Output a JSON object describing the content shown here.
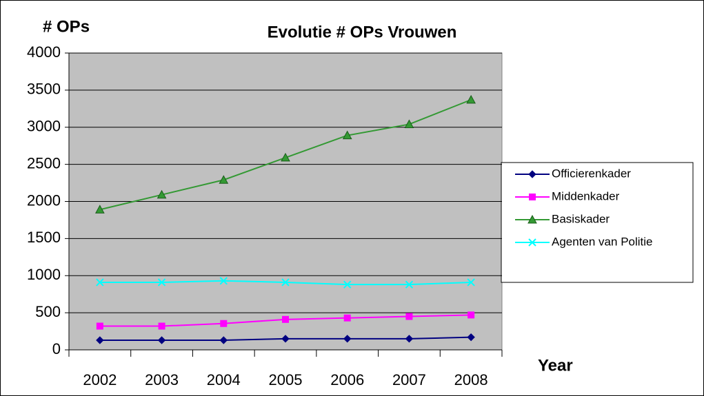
{
  "chart_data": {
    "type": "line",
    "title": "Evolutie # OPs Vrouwen",
    "y_label": "# OPs",
    "x_label": "Year",
    "categories": [
      "2002",
      "2003",
      "2004",
      "2005",
      "2006",
      "2007",
      "2008"
    ],
    "series": [
      {
        "name": "Officierenkader",
        "color": "#000080",
        "marker": "diamond",
        "values": [
          130,
          130,
          130,
          150,
          150,
          150,
          170
        ]
      },
      {
        "name": "Middenkader",
        "color": "#ff00ff",
        "marker": "square",
        "values": [
          320,
          320,
          355,
          410,
          430,
          450,
          470
        ]
      },
      {
        "name": "Basiskader",
        "color": "#339933",
        "marker": "triangle",
        "values": [
          1890,
          2090,
          2290,
          2590,
          2890,
          3040,
          3370
        ]
      },
      {
        "name": "Agenten van Politie",
        "color": "#00ffff",
        "marker": "x",
        "values": [
          910,
          910,
          930,
          910,
          880,
          880,
          910
        ]
      }
    ],
    "ylim": [
      0,
      4000
    ],
    "yticks": [
      0,
      500,
      1000,
      1500,
      2000,
      2500,
      3000,
      3500,
      4000
    ],
    "grid": true,
    "legend": "right"
  }
}
